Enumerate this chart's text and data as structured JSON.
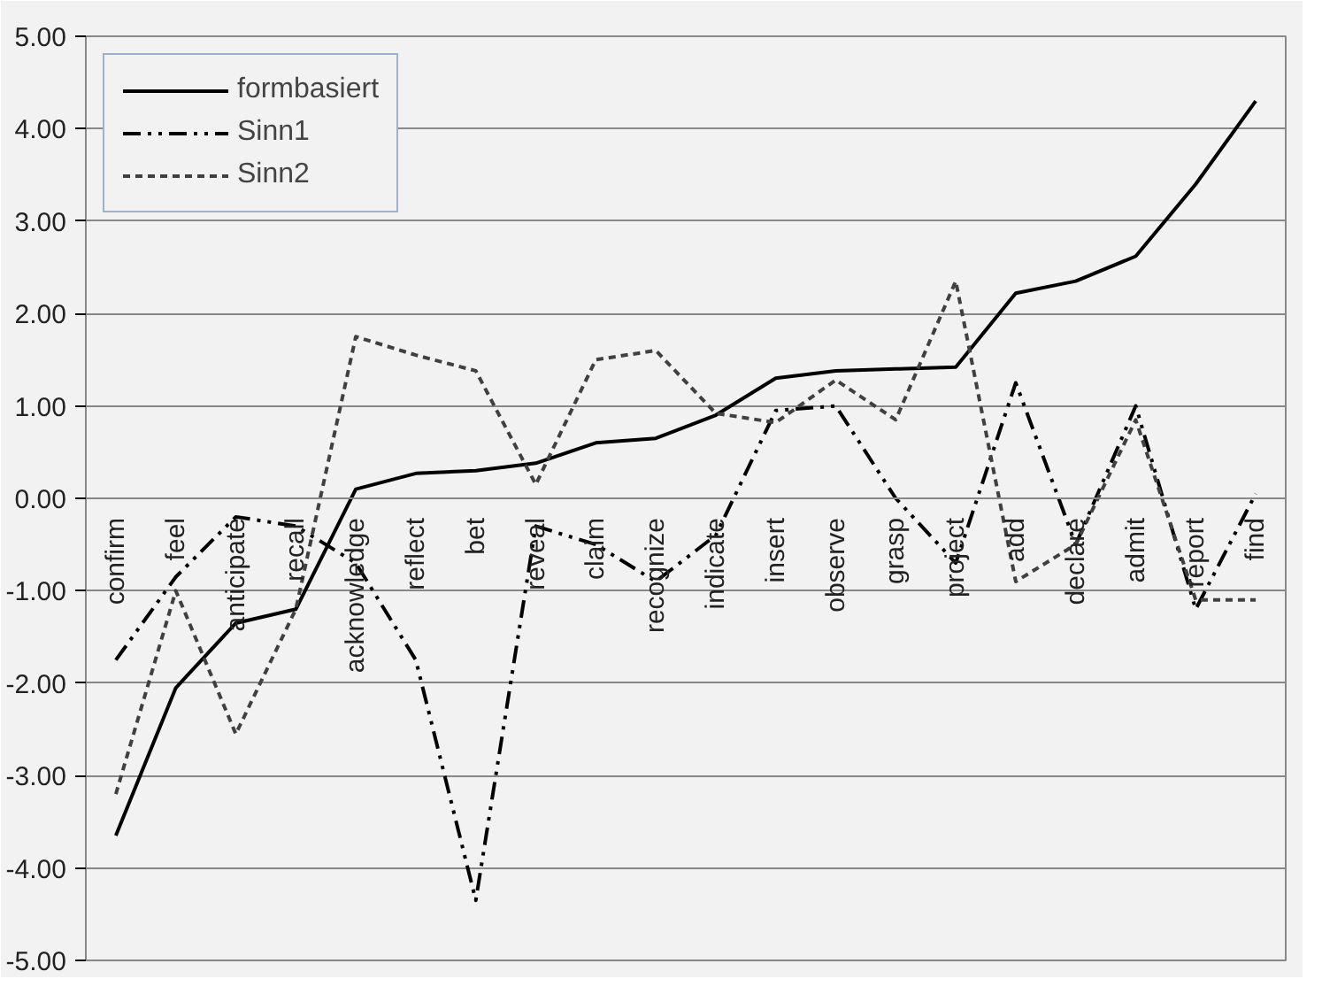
{
  "chart_data": {
    "type": "line",
    "categories": [
      "confirm",
      "feel",
      "anticipate",
      "recall",
      "acknowledge",
      "reflect",
      "bet",
      "reveal",
      "claim",
      "recognize",
      "indicate",
      "insert",
      "observe",
      "grasp",
      "project",
      "add",
      "declare",
      "admit",
      "report",
      "find"
    ],
    "series": [
      {
        "name": "formbasiert",
        "color": "#000000",
        "line_style": "solid",
        "values": [
          -3.65,
          -2.05,
          -1.35,
          -1.2,
          0.1,
          0.27,
          0.3,
          0.38,
          0.6,
          0.65,
          0.9,
          1.3,
          1.38,
          1.4,
          1.42,
          2.22,
          2.35,
          2.62,
          3.4,
          4.3
        ]
      },
      {
        "name": "Sinn1",
        "color": "#000000",
        "line_style": "dashdot",
        "values": [
          -1.75,
          -0.85,
          -0.2,
          -0.3,
          -0.7,
          -1.75,
          -4.35,
          -0.3,
          -0.5,
          -0.9,
          -0.4,
          0.95,
          1.0,
          0.0,
          -0.7,
          1.25,
          -0.5,
          1.0,
          -1.2,
          0.05
        ]
      },
      {
        "name": "Sinn2",
        "color": "#404040",
        "line_style": "dashed",
        "values": [
          -3.2,
          -1.0,
          -2.55,
          -1.2,
          1.75,
          1.55,
          1.38,
          0.15,
          1.5,
          1.6,
          0.92,
          0.82,
          1.28,
          0.85,
          2.35,
          -0.9,
          -0.5,
          0.85,
          -1.1,
          -1.1
        ]
      }
    ],
    "ylim": [
      -5,
      5
    ],
    "yticks": [
      {
        "value": -5,
        "label": "-5.00"
      },
      {
        "value": -4,
        "label": "-4.00"
      },
      {
        "value": -3,
        "label": "-3.00"
      },
      {
        "value": -2,
        "label": "-2.00"
      },
      {
        "value": -1,
        "label": "-1.00"
      },
      {
        "value": 0,
        "label": "0.00"
      },
      {
        "value": 1,
        "label": "1.00"
      },
      {
        "value": 2,
        "label": "2.00"
      },
      {
        "value": 3,
        "label": "3.00"
      },
      {
        "value": 4,
        "label": "4.00"
      },
      {
        "value": 5,
        "label": "5.00"
      }
    ],
    "grid": "y",
    "legend": "top left",
    "marker": "none"
  }
}
